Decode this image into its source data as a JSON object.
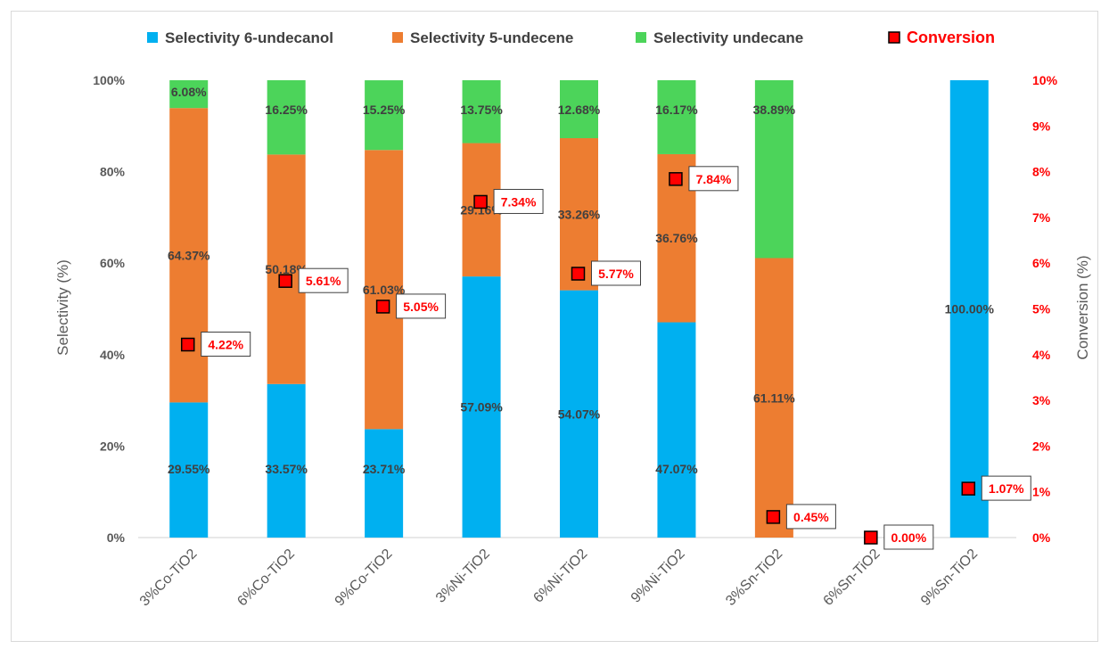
{
  "chart_data": {
    "type": "bar",
    "stacked": true,
    "categories": [
      "3%Co-TiO2",
      "6%Co-TiO2",
      "9%Co-TiO2",
      "3%Ni-TiO2",
      "6%Ni-TiO2",
      "9%Ni-TiO2",
      "3%Sn-TiO2",
      "6%Sn-TiO2",
      "9%Sn-TiO2"
    ],
    "series": [
      {
        "name": "Selectivity 6-undecanol",
        "color": "#00b0f0",
        "values": [
          29.55,
          33.57,
          23.71,
          57.09,
          54.07,
          47.07,
          0,
          0,
          100.0
        ],
        "labels": [
          "29.55%",
          "33.57%",
          "23.71%",
          "57.09%",
          "54.07%",
          "47.07%",
          "",
          "",
          "100.00%"
        ]
      },
      {
        "name": "Selectivity 5-undecene",
        "color": "#ed7d31",
        "values": [
          64.37,
          50.18,
          61.03,
          29.16,
          33.26,
          36.76,
          61.11,
          0,
          0
        ],
        "labels": [
          "64.37%",
          "50.18%",
          "61.03%",
          "29.16%",
          "33.26%",
          "36.76%",
          "61.11%",
          "",
          ""
        ]
      },
      {
        "name": "Selectivity undecane",
        "color": "#4cd45a",
        "values": [
          6.08,
          16.25,
          15.25,
          13.75,
          12.68,
          16.17,
          38.89,
          0,
          0
        ],
        "labels": [
          "6.08%",
          "16.25%",
          "15.25%",
          "13.75%",
          "12.68%",
          "16.17%",
          "38.89%",
          "",
          ""
        ]
      }
    ],
    "secondary_series": {
      "name": "Conversion",
      "type": "scatter",
      "color": "#ff0000",
      "axis": "right",
      "values": [
        4.22,
        5.61,
        5.05,
        7.34,
        5.77,
        7.84,
        0.45,
        0.0,
        1.07
      ],
      "labels": [
        "4.22%",
        "5.61%",
        "5.05%",
        "7.34%",
        "5.77%",
        "7.84%",
        "0.45%",
        "0.00%",
        "1.07%"
      ]
    },
    "ylabel": "Selectivity (%)",
    "y2label": "Conversion (%)",
    "ylim": [
      0,
      100
    ],
    "y2lim": [
      0,
      10
    ],
    "yticks": [
      "0%",
      "20%",
      "40%",
      "60%",
      "80%",
      "100%"
    ],
    "y2ticks": [
      "0%",
      "1%",
      "2%",
      "3%",
      "4%",
      "5%",
      "6%",
      "7%",
      "8%",
      "9%",
      "10%"
    ],
    "legend_position": "top",
    "grid": false
  }
}
